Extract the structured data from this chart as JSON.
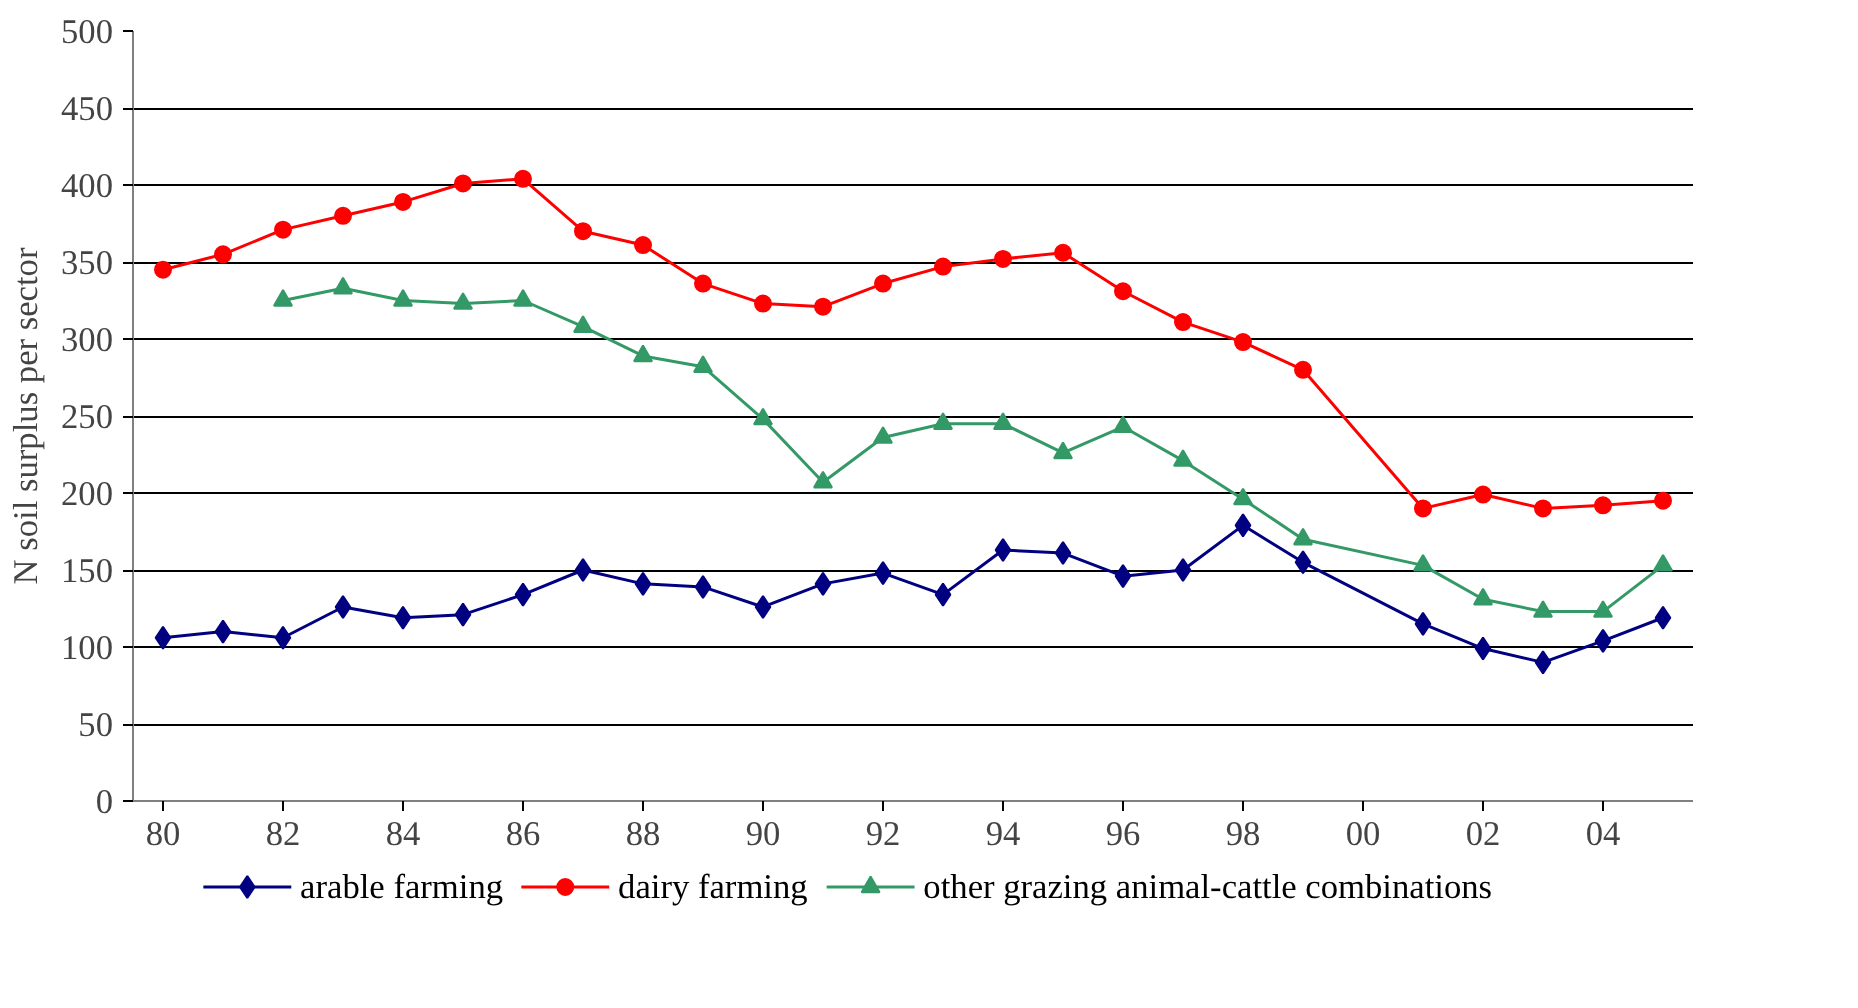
{
  "chart_data": {
    "type": "line",
    "ylabel": "N soil surplus per sector",
    "xlim": [
      1979.5,
      2005.5
    ],
    "ylim": [
      0,
      500
    ],
    "xticks": [
      {
        "value": 1980,
        "label": "80"
      },
      {
        "value": 1982,
        "label": "82"
      },
      {
        "value": 1984,
        "label": "84"
      },
      {
        "value": 1986,
        "label": "86"
      },
      {
        "value": 1988,
        "label": "88"
      },
      {
        "value": 1990,
        "label": "90"
      },
      {
        "value": 1992,
        "label": "92"
      },
      {
        "value": 1994,
        "label": "94"
      },
      {
        "value": 1996,
        "label": "96"
      },
      {
        "value": 1998,
        "label": "98"
      },
      {
        "value": 2000,
        "label": "00"
      },
      {
        "value": 2002,
        "label": "02"
      },
      {
        "value": 2004,
        "label": "04"
      }
    ],
    "yticks": [
      0,
      50,
      100,
      150,
      200,
      250,
      300,
      350,
      400,
      450,
      500
    ],
    "grid": "y",
    "legend": "bottom",
    "series": [
      {
        "name": "arable farming",
        "color": "#000080",
        "marker": "diamond",
        "x": [
          1980,
          1981,
          1982,
          1983,
          1984,
          1985,
          1986,
          1987,
          1988,
          1989,
          1990,
          1991,
          1992,
          1993,
          1994,
          1995,
          1996,
          1997,
          1998,
          1999,
          2001,
          2002,
          2003,
          2004,
          2005
        ],
        "values": [
          106,
          110,
          106,
          126,
          119,
          121,
          134,
          150,
          141,
          139,
          126,
          141,
          148,
          134,
          163,
          161,
          146,
          150,
          179,
          155,
          115,
          99,
          90,
          104,
          119
        ]
      },
      {
        "name": "dairy farming",
        "color": "#ff0000",
        "marker": "circle",
        "x": [
          1980,
          1981,
          1982,
          1983,
          1984,
          1985,
          1986,
          1987,
          1988,
          1989,
          1990,
          1991,
          1992,
          1993,
          1994,
          1995,
          1996,
          1997,
          1998,
          1999,
          2001,
          2002,
          2003,
          2004,
          2005
        ],
        "values": [
          345,
          355,
          371,
          380,
          389,
          401,
          404,
          370,
          361,
          336,
          323,
          321,
          336,
          347,
          352,
          356,
          331,
          311,
          298,
          280,
          190,
          199,
          190,
          192,
          195
        ]
      },
      {
        "name": "other grazing animal-cattle combinations",
        "color": "#339966",
        "marker": "triangle",
        "x": [
          1982,
          1983,
          1984,
          1985,
          1986,
          1987,
          1988,
          1989,
          1990,
          1991,
          1992,
          1993,
          1994,
          1995,
          1996,
          1997,
          1998,
          1999,
          2001,
          2002,
          2003,
          2004,
          2005
        ],
        "values": [
          325,
          333,
          325,
          323,
          325,
          308,
          289,
          282,
          248,
          207,
          236,
          245,
          245,
          226,
          243,
          221,
          196,
          170,
          153,
          131,
          123,
          123,
          153
        ]
      }
    ]
  }
}
